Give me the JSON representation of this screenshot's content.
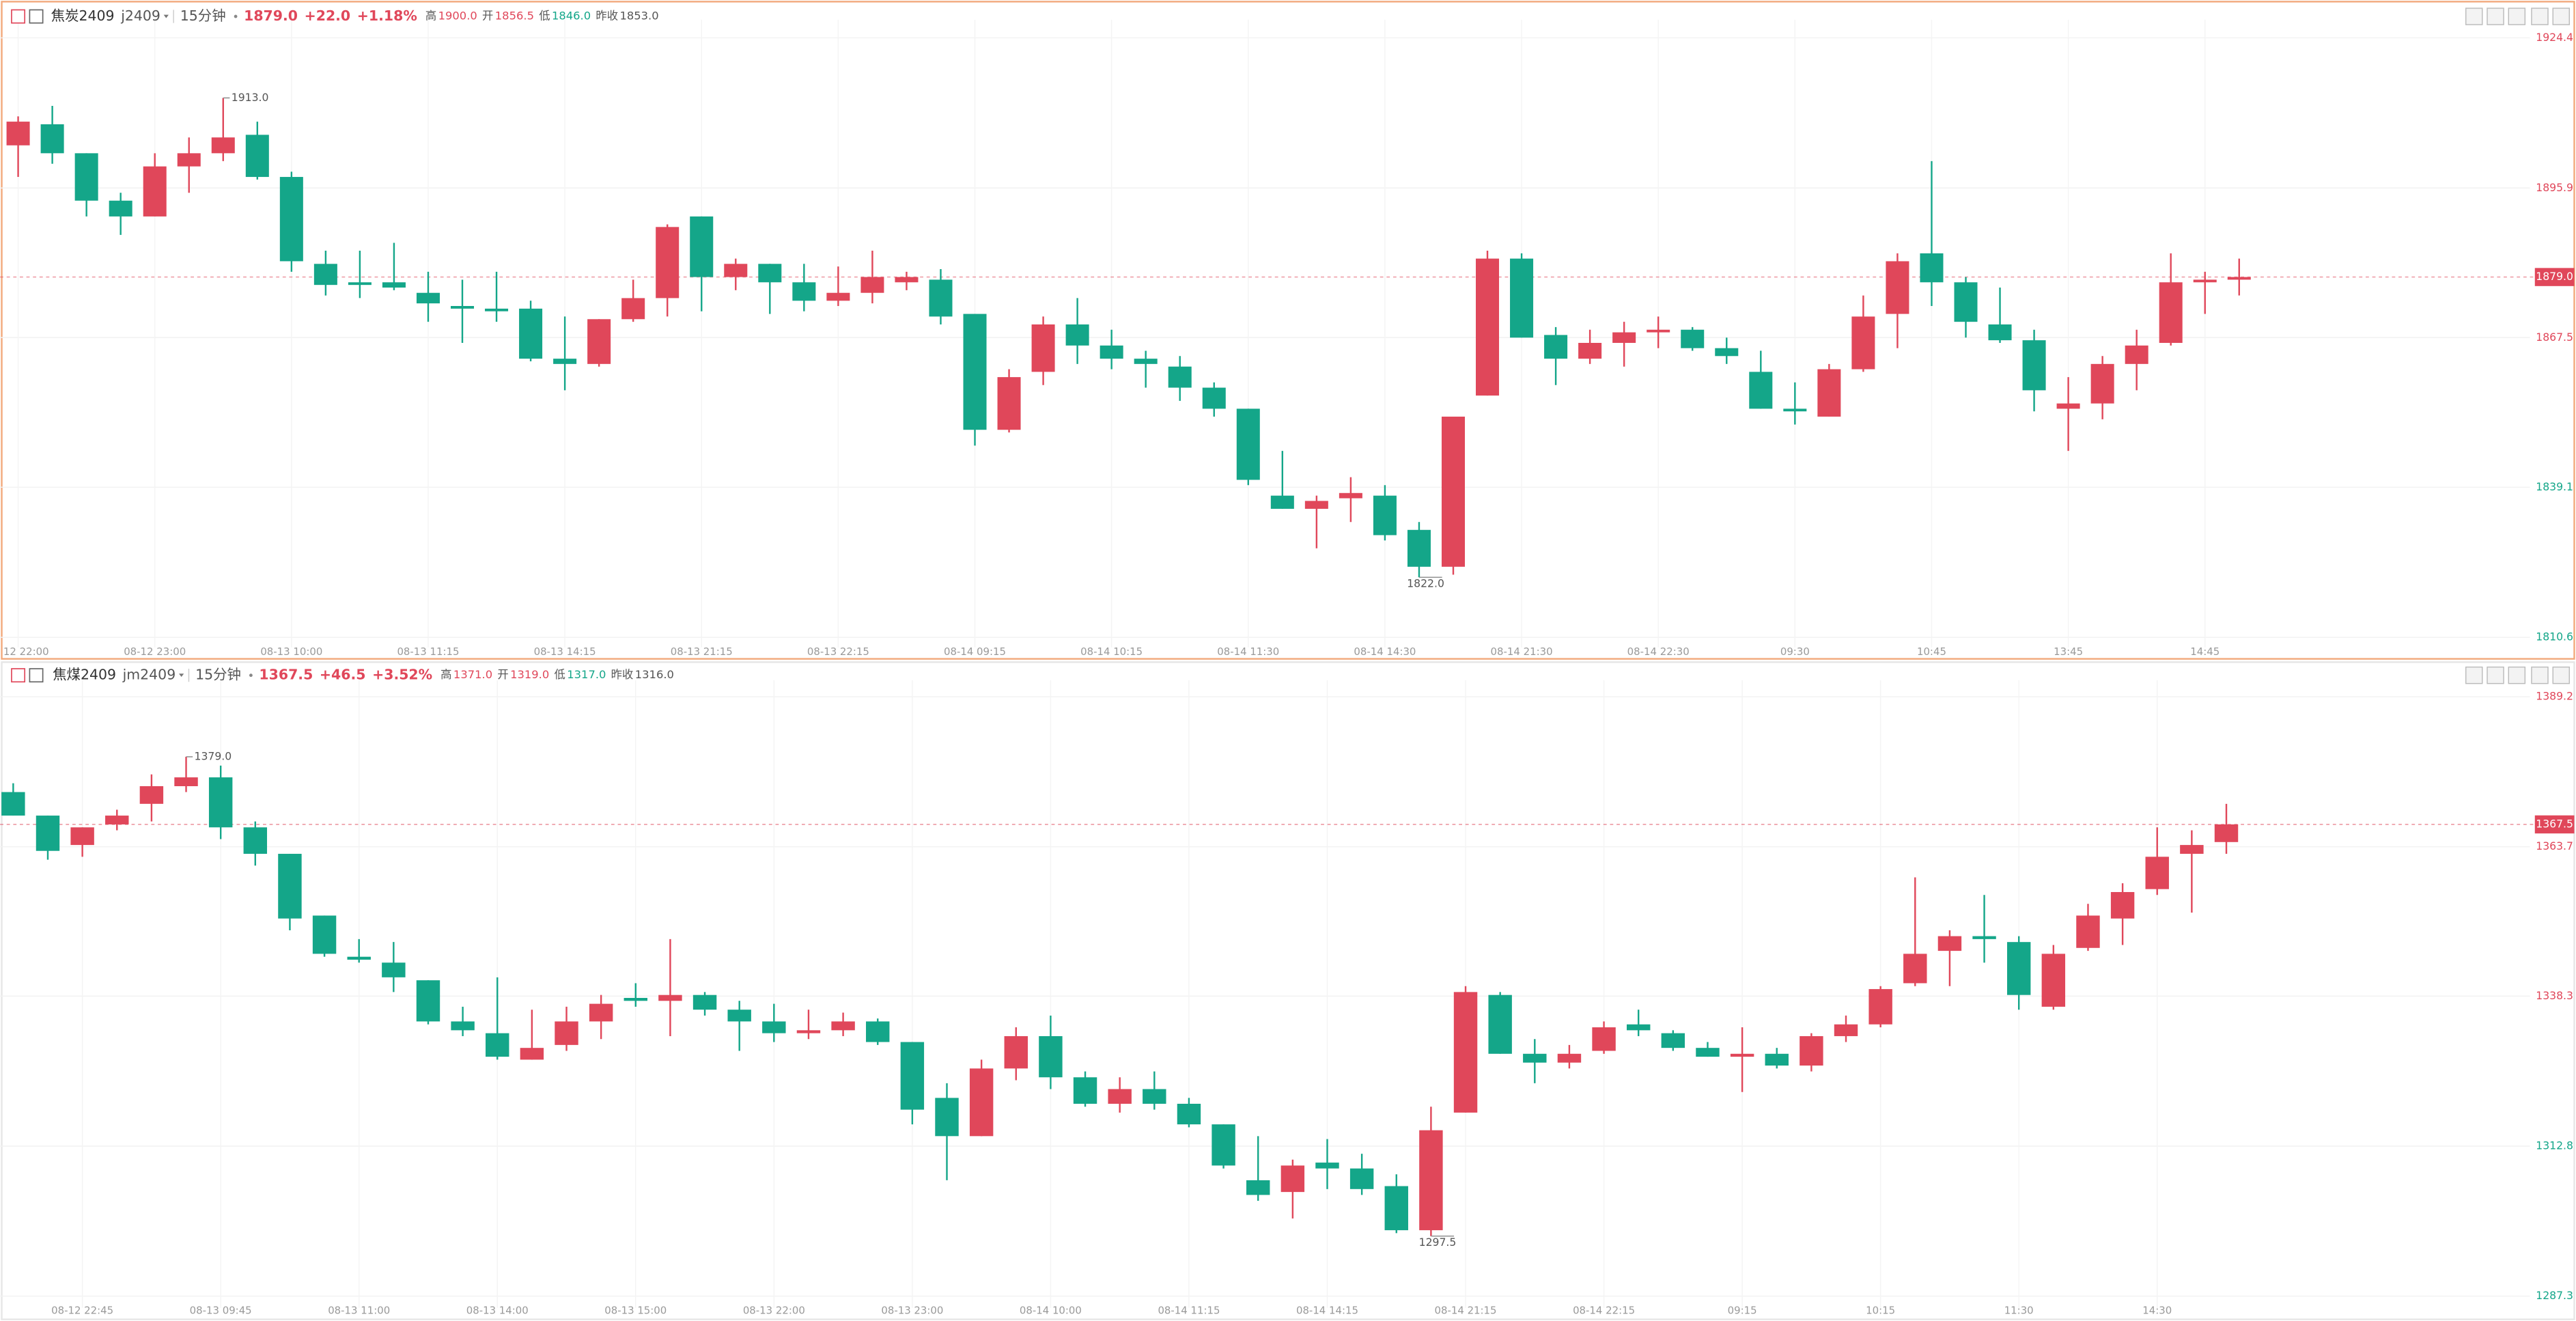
{
  "chart_data": [
    {
      "type": "candlestick",
      "header": {
        "name": "焦炭2409",
        "code": "j2409",
        "period": "15分钟",
        "change": "+22.0",
        "pct": "+1.18%",
        "high_text": "高",
        "high": "1900.0",
        "open_text": "开",
        "open": "1856.5",
        "low_text": "低",
        "low": "1846.0",
        "prev_text": "昨收"
      },
      "last": {
        "value": 1879,
        "label": "1879.0"
      },
      "prev_close": {
        "value": 1853,
        "label": "1853.0"
      },
      "high_mark": {
        "value": 1913,
        "label": "1913.0"
      },
      "low_mark": {
        "value": 1822,
        "label": "1822.0"
      },
      "up_color": "#e0475a",
      "down_color": "#14a689",
      "grid": true,
      "ylim": [
        1808.7,
        1926.6
      ],
      "yticks": [
        1810.6,
        1839.1,
        1867.5,
        1895.9,
        1924.4
      ],
      "categories": [
        "12 22:00",
        null,
        null,
        null,
        "08-12 23:00",
        null,
        null,
        null,
        "08-13 10:00",
        null,
        null,
        null,
        "08-13 11:15",
        null,
        null,
        null,
        "08-13 14:15",
        null,
        null,
        null,
        "08-13 21:15",
        null,
        null,
        null,
        "08-13 22:15",
        null,
        null,
        null,
        "08-14 09:15",
        null,
        null,
        null,
        "08-14 10:15",
        null,
        null,
        null,
        "08-14 11:30",
        null,
        null,
        null,
        "08-14 14:30",
        null,
        null,
        null,
        "08-14 21:30",
        null,
        null,
        null,
        "08-14 22:30",
        null,
        null,
        null,
        "09:30",
        null,
        null,
        null,
        "10:45",
        null,
        null,
        null,
        "13:45",
        null,
        null,
        null,
        "14:45",
        null
      ],
      "open": [
        1904,
        1908,
        1902.5,
        1893.5,
        1890.5,
        1900,
        1902.5,
        1906,
        1898,
        1881.5,
        1878,
        1878,
        1876,
        1873.5,
        1873,
        1873,
        1863.5,
        1862.5,
        1871,
        1875,
        1890.5,
        1879,
        1881.5,
        1878,
        1874.5,
        1876,
        1878,
        1878.5,
        1872,
        1850,
        1861,
        1870,
        1866,
        1863.5,
        1862,
        1858,
        1854,
        1837.5,
        1835,
        1837,
        1837.5,
        1831,
        1824,
        1856.5,
        1882.5,
        1868,
        1863.5,
        1866.5,
        1868.5,
        1869,
        1865.5,
        1861,
        1854,
        1852.5,
        1861.5,
        1872,
        1883.5,
        1878,
        1870,
        1867,
        1854,
        1855,
        1862.5,
        1866.5,
        1878,
        1878.5
      ],
      "high": [
        1909.5,
        1911.5,
        1902.5,
        1895,
        1902.5,
        1905.5,
        1913,
        1908.5,
        1899,
        1884,
        1884,
        1885.5,
        1880,
        1878.5,
        1880,
        1874.5,
        1871.5,
        1871,
        1878.5,
        1889,
        1890.5,
        1882.5,
        1881.5,
        1881.5,
        1881,
        1884,
        1880,
        1880.5,
        1872,
        1861.5,
        1871.5,
        1875,
        1869,
        1865,
        1864,
        1859,
        1854,
        1846,
        1837.5,
        1841,
        1839.5,
        1832.5,
        1852.5,
        1884,
        1883.5,
        1869.5,
        1869,
        1870.5,
        1871.5,
        1869.5,
        1867.5,
        1865,
        1859,
        1862.5,
        1875.5,
        1883.5,
        1901,
        1879,
        1877,
        1869,
        1860,
        1864,
        1869,
        1883.5,
        1880,
        1882.5
      ],
      "low": [
        1898,
        1900.5,
        1890.5,
        1887,
        1890.5,
        1895,
        1901,
        1897.5,
        1880,
        1875.5,
        1875,
        1876.5,
        1870.5,
        1866.5,
        1870.5,
        1863,
        1857.5,
        1862,
        1870.5,
        1871.5,
        1872.5,
        1876.5,
        1872,
        1872.5,
        1873.5,
        1874,
        1876.5,
        1870,
        1847,
        1849.5,
        1858.5,
        1862.5,
        1861.5,
        1858,
        1855.5,
        1852.5,
        1839.5,
        1835,
        1827.5,
        1832.5,
        1829,
        1822,
        1822.5,
        1856.5,
        1867.5,
        1858.5,
        1862.5,
        1862,
        1865.5,
        1865,
        1862.5,
        1854,
        1851,
        1852.5,
        1861,
        1865.5,
        1873.5,
        1867.5,
        1866.5,
        1853.5,
        1846,
        1852,
        1857.5,
        1866,
        1872,
        1875.5
      ],
      "close": [
        1908.5,
        1902.5,
        1893.5,
        1890.5,
        1900,
        1902.5,
        1905.5,
        1898,
        1882,
        1877.5,
        1877.5,
        1877,
        1874,
        1873,
        1872.5,
        1863.5,
        1862.5,
        1871,
        1875,
        1888.5,
        1879,
        1881.5,
        1878,
        1874.5,
        1876,
        1879,
        1879,
        1871.5,
        1850,
        1860,
        1870,
        1866,
        1863.5,
        1862.5,
        1858,
        1854,
        1840.5,
        1835,
        1836.5,
        1838,
        1830,
        1824,
        1852.5,
        1882.5,
        1867.5,
        1863.5,
        1866.5,
        1868.5,
        1869,
        1865.5,
        1864,
        1854,
        1853.5,
        1861.5,
        1871.5,
        1882,
        1878,
        1870.5,
        1867,
        1857.5,
        1855,
        1862.5,
        1866,
        1878,
        1878.5,
        1879
      ]
    },
    {
      "type": "candlestick",
      "header": {
        "name": "焦煤2409",
        "code": "jm2409",
        "period": "15分钟",
        "change": "+46.5",
        "pct": "+3.52%",
        "high_text": "高",
        "high": "1371.0",
        "open_text": "开",
        "open": "1319.0",
        "low_text": "低",
        "low": "1317.0",
        "prev_text": "昨收"
      },
      "last": {
        "value": 1367.5,
        "label": "1367.5"
      },
      "prev_close": {
        "value": 1316,
        "label": "1316.0"
      },
      "high_mark": {
        "value": 1379,
        "label": "1379.0"
      },
      "low_mark": {
        "value": 1297.5,
        "label": "1297.5"
      },
      "up_color": "#e0475a",
      "down_color": "#14a689",
      "grid": true,
      "ylim": [
        1285.3,
        1390.9
      ],
      "yticks": [
        1287.3,
        1312.8,
        1338.3,
        1363.7,
        1389.2
      ],
      "categories": [
        null,
        null,
        "08-12 22:45",
        null,
        null,
        null,
        "08-13 09:45",
        null,
        null,
        null,
        "08-13 11:00",
        null,
        null,
        null,
        "08-13 14:00",
        null,
        null,
        null,
        "08-13 15:00",
        null,
        null,
        null,
        "08-13 22:00",
        null,
        null,
        null,
        "08-13 23:00",
        null,
        null,
        null,
        "08-14 10:00",
        null,
        null,
        null,
        "08-14 11:15",
        null,
        null,
        null,
        "08-14 14:15",
        null,
        null,
        null,
        "08-14 21:15",
        null,
        null,
        null,
        "08-14 22:15",
        null,
        null,
        null,
        "09:15",
        null,
        null,
        null,
        "10:15",
        null,
        null,
        null,
        "11:30",
        null,
        null,
        null,
        "14:30",
        null,
        null
      ],
      "open": [
        1373,
        1369,
        1364,
        1367.5,
        1371,
        1374,
        1375.5,
        1367,
        1362.5,
        1352,
        1345,
        1344,
        1341,
        1334,
        1332,
        1327.5,
        1330,
        1334,
        1338,
        1337.5,
        1338.5,
        1336,
        1334,
        1332,
        1332.5,
        1334,
        1330.5,
        1321,
        1314.5,
        1326,
        1331.5,
        1324.5,
        1320,
        1322.5,
        1320,
        1316.5,
        1307,
        1305,
        1310,
        1309,
        1306,
        1298.5,
        1318.5,
        1338.5,
        1328.5,
        1327,
        1329,
        1333.5,
        1332,
        1329.5,
        1328,
        1328.5,
        1326.5,
        1331.5,
        1333.5,
        1340.5,
        1346,
        1348.5,
        1347.5,
        1336.5,
        1346.5,
        1351.5,
        1356.5,
        1362.5,
        1364.5
      ],
      "high": [
        1374.5,
        1369,
        1367,
        1370,
        1376,
        1379,
        1377.5,
        1368,
        1362.5,
        1352,
        1348,
        1347.5,
        1341,
        1336.5,
        1341.5,
        1336,
        1336.5,
        1338.5,
        1340.5,
        1348,
        1339,
        1337.5,
        1337,
        1336,
        1335.5,
        1334.5,
        1330.5,
        1323.5,
        1327.5,
        1333,
        1335,
        1325.5,
        1324.5,
        1325.5,
        1321,
        1316.5,
        1314.5,
        1310.5,
        1314,
        1311.5,
        1308,
        1319.5,
        1340,
        1339,
        1331,
        1330,
        1334,
        1336,
        1332.5,
        1330.5,
        1333,
        1329.5,
        1332,
        1335,
        1340,
        1358.5,
        1349.5,
        1355.5,
        1348.5,
        1347,
        1354,
        1357.5,
        1367,
        1366.5,
        1371
      ],
      "low": [
        1369,
        1361.5,
        1362,
        1366.5,
        1368,
        1373,
        1365,
        1360.5,
        1349.5,
        1345,
        1344,
        1339,
        1333.5,
        1331.5,
        1327.5,
        1327.5,
        1329,
        1331,
        1336.5,
        1331.5,
        1335,
        1329,
        1330.5,
        1331,
        1331.5,
        1330,
        1316.5,
        1307,
        1314.5,
        1324,
        1322.5,
        1319.5,
        1318.5,
        1319,
        1316,
        1309,
        1303.5,
        1300.5,
        1305.5,
        1304.5,
        1298,
        1297.5,
        1318.5,
        1328.5,
        1323.5,
        1326,
        1328.5,
        1331.5,
        1329,
        1328,
        1322,
        1326,
        1325.5,
        1330.5,
        1333,
        1340,
        1340,
        1344,
        1336,
        1336,
        1346,
        1347,
        1355.5,
        1352.5,
        1362.5
      ],
      "close": [
        1369,
        1363,
        1367,
        1369,
        1374,
        1375.5,
        1367,
        1362.5,
        1351.5,
        1345.5,
        1344.5,
        1341.5,
        1334,
        1332.5,
        1328,
        1329.5,
        1334,
        1337,
        1337.5,
        1338.5,
        1336,
        1334,
        1332,
        1332.5,
        1334,
        1330.5,
        1319,
        1314.5,
        1326,
        1331.5,
        1324.5,
        1320,
        1322.5,
        1320,
        1316.5,
        1309.5,
        1304.5,
        1309.5,
        1309,
        1305.5,
        1298.5,
        1315.5,
        1339,
        1328.5,
        1327,
        1328.5,
        1333,
        1332.5,
        1329.5,
        1328,
        1328.5,
        1326.5,
        1331.5,
        1333.5,
        1339.5,
        1345.5,
        1348.5,
        1348,
        1338.5,
        1345.5,
        1352,
        1356,
        1362,
        1364,
        1367.5
      ]
    }
  ]
}
